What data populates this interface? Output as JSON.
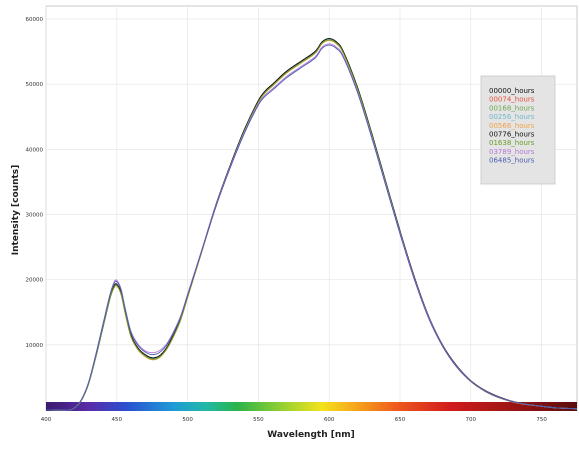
{
  "chart_data": {
    "type": "line",
    "title": "",
    "xlabel": "Wavelength [nm]",
    "ylabel": "Intensity [counts]",
    "xlim": [
      400,
      775
    ],
    "ylim": [
      0,
      62000
    ],
    "x_ticks": [
      400,
      450,
      500,
      550,
      600,
      650,
      700,
      750
    ],
    "x_tick_labels": [
      "400",
      "450",
      "500",
      "550",
      "600",
      "650",
      "700",
      "750"
    ],
    "y_ticks": [
      10000,
      20000,
      30000,
      40000,
      50000,
      60000
    ],
    "y_tick_labels": [
      "10000",
      "20000",
      "30000",
      "40000",
      "50000",
      "60000"
    ],
    "grid": true,
    "legend_position": "right",
    "spectrum_bar": true,
    "x": [
      400,
      415,
      420,
      425,
      430,
      435,
      440,
      445,
      448,
      450,
      453,
      456,
      460,
      465,
      470,
      475,
      480,
      485,
      490,
      495,
      500,
      505,
      510,
      520,
      530,
      540,
      550,
      555,
      560,
      570,
      580,
      590,
      595,
      600,
      605,
      610,
      620,
      630,
      640,
      650,
      660,
      670,
      680,
      690,
      700,
      710,
      720,
      730,
      740,
      750,
      760,
      775
    ],
    "series": [
      {
        "name": "00000_hours",
        "color": "#111111",
        "values": [
          0,
          0,
          300,
          1500,
          4000,
          8000,
          12500,
          17000,
          19000,
          19300,
          18000,
          15000,
          11500,
          9500,
          8500,
          8000,
          8300,
          9500,
          11500,
          14000,
          17500,
          21000,
          24500,
          31500,
          37500,
          43000,
          47500,
          49000,
          50000,
          52000,
          53500,
          55000,
          56500,
          57000,
          56500,
          55000,
          49500,
          42500,
          35000,
          27500,
          20500,
          14500,
          10000,
          6800,
          4500,
          3000,
          2000,
          1300,
          900,
          600,
          350,
          200
        ]
      },
      {
        "name": "00074_hours",
        "color": "#e8503a",
        "values": [
          0,
          0,
          300,
          1500,
          4000,
          8000,
          12500,
          17000,
          18900,
          19200,
          17900,
          14900,
          11400,
          9400,
          8400,
          7900,
          8200,
          9400,
          11400,
          13900,
          17400,
          20900,
          24400,
          31400,
          37400,
          42900,
          47400,
          48900,
          49900,
          51900,
          53400,
          54900,
          56400,
          56900,
          56400,
          54900,
          49400,
          42400,
          34900,
          27400,
          20400,
          14400,
          9900,
          6700,
          4400,
          2900,
          1900,
          1250,
          850,
          580,
          330,
          190
        ]
      },
      {
        "name": "00168_hours",
        "color": "#6aa84f",
        "values": [
          0,
          0,
          300,
          1500,
          4000,
          8000,
          12500,
          17000,
          18800,
          19100,
          17800,
          14800,
          11300,
          9300,
          8300,
          7800,
          8100,
          9300,
          11300,
          13800,
          17300,
          20800,
          24300,
          31300,
          37300,
          42800,
          47300,
          48800,
          49800,
          51800,
          53300,
          54800,
          56300,
          56800,
          56300,
          54800,
          49300,
          42300,
          34800,
          27300,
          20300,
          14300,
          9850,
          6650,
          4400,
          2900,
          1900,
          1250,
          850,
          580,
          330,
          190
        ]
      },
      {
        "name": "00256_hours",
        "color": "#6fb9c9",
        "values": [
          0,
          0,
          300,
          1500,
          4000,
          8000,
          12500,
          17000,
          18900,
          19200,
          17900,
          14900,
          11400,
          9400,
          8400,
          7900,
          8200,
          9400,
          11400,
          13900,
          17400,
          20900,
          24400,
          31400,
          37400,
          42900,
          47400,
          48900,
          49900,
          51900,
          53400,
          54900,
          56400,
          56900,
          56400,
          54900,
          49400,
          42400,
          34900,
          27400,
          20400,
          14400,
          9900,
          6700,
          4400,
          2900,
          1900,
          1250,
          850,
          580,
          330,
          190
        ]
      },
      {
        "name": "00566_hours",
        "color": "#f0a24a",
        "values": [
          0,
          0,
          300,
          1500,
          4000,
          8000,
          12500,
          17000,
          18700,
          19000,
          17700,
          14700,
          11200,
          9200,
          8200,
          7700,
          8000,
          9200,
          11200,
          13700,
          17200,
          20700,
          24200,
          31200,
          37200,
          42700,
          47200,
          48700,
          49700,
          51700,
          53200,
          54700,
          56200,
          56700,
          56200,
          54700,
          49200,
          42200,
          34700,
          27200,
          20200,
          14200,
          9800,
          6600,
          4350,
          2850,
          1850,
          1200,
          820,
          560,
          320,
          180
        ]
      },
      {
        "name": "00776_hours",
        "color": "#111111",
        "values": [
          0,
          0,
          300,
          1500,
          4000,
          8000,
          12500,
          17000,
          19000,
          19300,
          18000,
          15000,
          11500,
          9500,
          8500,
          8000,
          8300,
          9500,
          11500,
          14000,
          17500,
          21000,
          24500,
          31500,
          37500,
          43000,
          47500,
          49000,
          50000,
          52000,
          53500,
          55000,
          56500,
          57000,
          56500,
          55000,
          49500,
          42500,
          35000,
          27500,
          20500,
          14500,
          10000,
          6800,
          4500,
          3000,
          2000,
          1300,
          900,
          600,
          350,
          200
        ]
      },
      {
        "name": "01638_hours",
        "color": "#6b9e2a",
        "values": [
          0,
          0,
          300,
          1500,
          4000,
          8000,
          12500,
          17000,
          18800,
          19100,
          17800,
          14800,
          11300,
          9300,
          8300,
          7800,
          8100,
          9300,
          11300,
          13800,
          17300,
          20800,
          24300,
          31300,
          37300,
          42800,
          47300,
          48800,
          49800,
          51800,
          53300,
          54800,
          56300,
          56800,
          56300,
          54800,
          49300,
          42300,
          34800,
          27300,
          20300,
          14300,
          9850,
          6650,
          4400,
          2900,
          1900,
          1250,
          850,
          580,
          330,
          190
        ]
      },
      {
        "name": "03789_hours",
        "color": "#b27ad6",
        "values": [
          0,
          0,
          320,
          1600,
          4200,
          8400,
          13000,
          17600,
          19600,
          19900,
          18600,
          15600,
          12100,
          10100,
          9100,
          8800,
          9100,
          10100,
          12000,
          14400,
          17800,
          21200,
          24600,
          31400,
          37300,
          42600,
          47000,
          48400,
          49300,
          51200,
          52700,
          54200,
          55700,
          56200,
          55700,
          54300,
          48900,
          42000,
          34600,
          27200,
          20300,
          14400,
          9900,
          6700,
          4450,
          2950,
          1950,
          1280,
          880,
          590,
          340,
          200
        ]
      },
      {
        "name": "06485_hours",
        "color": "#4a5bb0",
        "values": [
          0,
          0,
          320,
          1600,
          4200,
          8300,
          12900,
          17500,
          19400,
          19700,
          18400,
          15400,
          11900,
          9900,
          8900,
          8500,
          8800,
          9900,
          11800,
          14200,
          17600,
          21000,
          24400,
          31200,
          37100,
          42400,
          46800,
          48200,
          49100,
          51000,
          52500,
          54000,
          55500,
          56000,
          55500,
          54100,
          48700,
          41800,
          34400,
          27000,
          20100,
          14200,
          9800,
          6600,
          4400,
          2900,
          1900,
          1250,
          850,
          580,
          330,
          190
        ]
      }
    ]
  }
}
